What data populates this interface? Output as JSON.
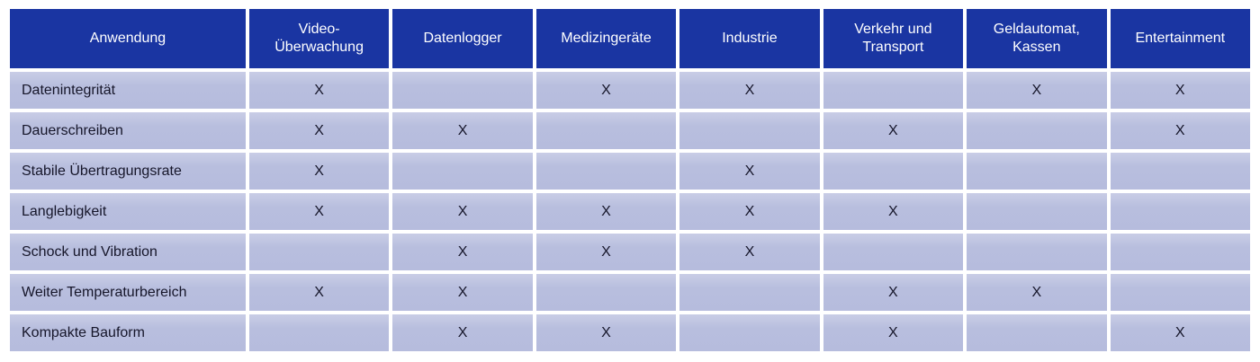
{
  "table": {
    "mark_symbol": "X",
    "columns": [
      "Anwendung",
      "Video-\nÜberwachung",
      "Datenlogger",
      "Medizingeräte",
      "Industrie",
      "Verkehr und\nTransport",
      "Geldautomat,\nKassen",
      "Entertainment"
    ],
    "rows": [
      {
        "label": "Datenintegrität",
        "cells": [
          "X",
          "",
          "X",
          "X",
          "",
          "X",
          "X"
        ]
      },
      {
        "label": "Dauerschreiben",
        "cells": [
          "X",
          "X",
          "",
          "",
          "X",
          "",
          "X"
        ]
      },
      {
        "label": "Stabile Übertragungsrate",
        "cells": [
          "X",
          "",
          "",
          "X",
          "",
          "",
          ""
        ]
      },
      {
        "label": "Langlebigkeit",
        "cells": [
          "X",
          "X",
          "X",
          "X",
          "X",
          "",
          ""
        ]
      },
      {
        "label": "Schock und Vibration",
        "cells": [
          "",
          "X",
          "X",
          "X",
          "",
          "",
          ""
        ]
      },
      {
        "label": "Weiter Temperaturbereich",
        "cells": [
          "X",
          "X",
          "",
          "",
          "X",
          "X",
          ""
        ]
      },
      {
        "label": "Kompakte Bauform",
        "cells": [
          "",
          "X",
          "X",
          "",
          "X",
          "",
          "X"
        ]
      }
    ],
    "colors": {
      "header_bg": "#1a35a2",
      "header_text": "#ffffff",
      "row_bg": "#b9bfdf",
      "body_text": "#16162a",
      "grid": "#ffffff"
    }
  }
}
